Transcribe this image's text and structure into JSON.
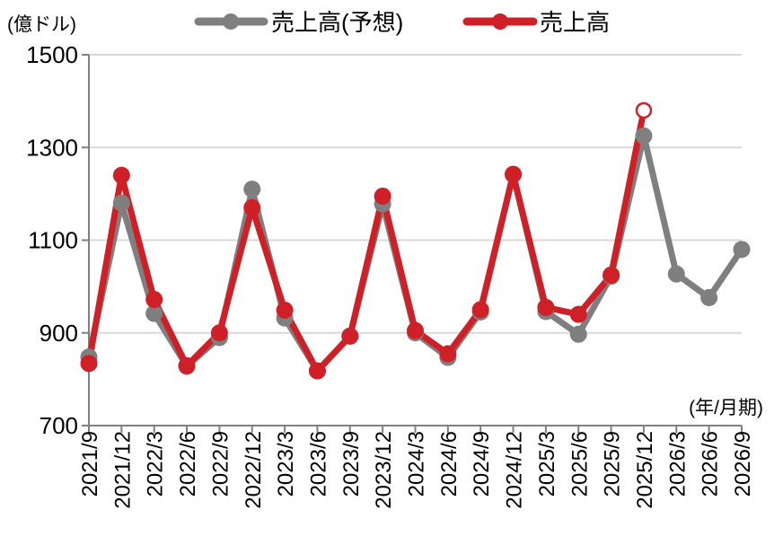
{
  "chart_data": {
    "type": "line",
    "ylabel": "(億ドル)",
    "xlabel": "(年/月期)",
    "ylim": [
      700,
      1500
    ],
    "yticks": [
      700,
      900,
      1100,
      1300,
      1500
    ],
    "grid": true,
    "legend_position": "top",
    "categories": [
      "2021/9",
      "2021/12",
      "2022/3",
      "2022/6",
      "2022/9",
      "2022/12",
      "2023/3",
      "2023/6",
      "2023/9",
      "2023/12",
      "2024/3",
      "2024/6",
      "2024/9",
      "2024/12",
      "2025/3",
      "2025/6",
      "2025/9",
      "2025/12",
      "2026/3",
      "2026/6",
      "2026/9"
    ],
    "series": [
      {
        "name": "売上高(予想)",
        "color": "#7f7f7f",
        "values": [
          848,
          1180,
          942,
          828,
          890,
          1210,
          932,
          818,
          893,
          1178,
          900,
          847,
          945,
          1242,
          946,
          897,
          1022,
          1325,
          1027,
          976,
          1080
        ]
      },
      {
        "name": "売上高",
        "color": "#cf2027",
        "values": [
          834,
          1240,
          972,
          829,
          900,
          1170,
          949,
          818,
          893,
          1195,
          905,
          855,
          950,
          1242,
          955,
          940,
          1025,
          1380,
          null,
          null,
          null
        ],
        "open_marker_index": 17
      }
    ]
  }
}
